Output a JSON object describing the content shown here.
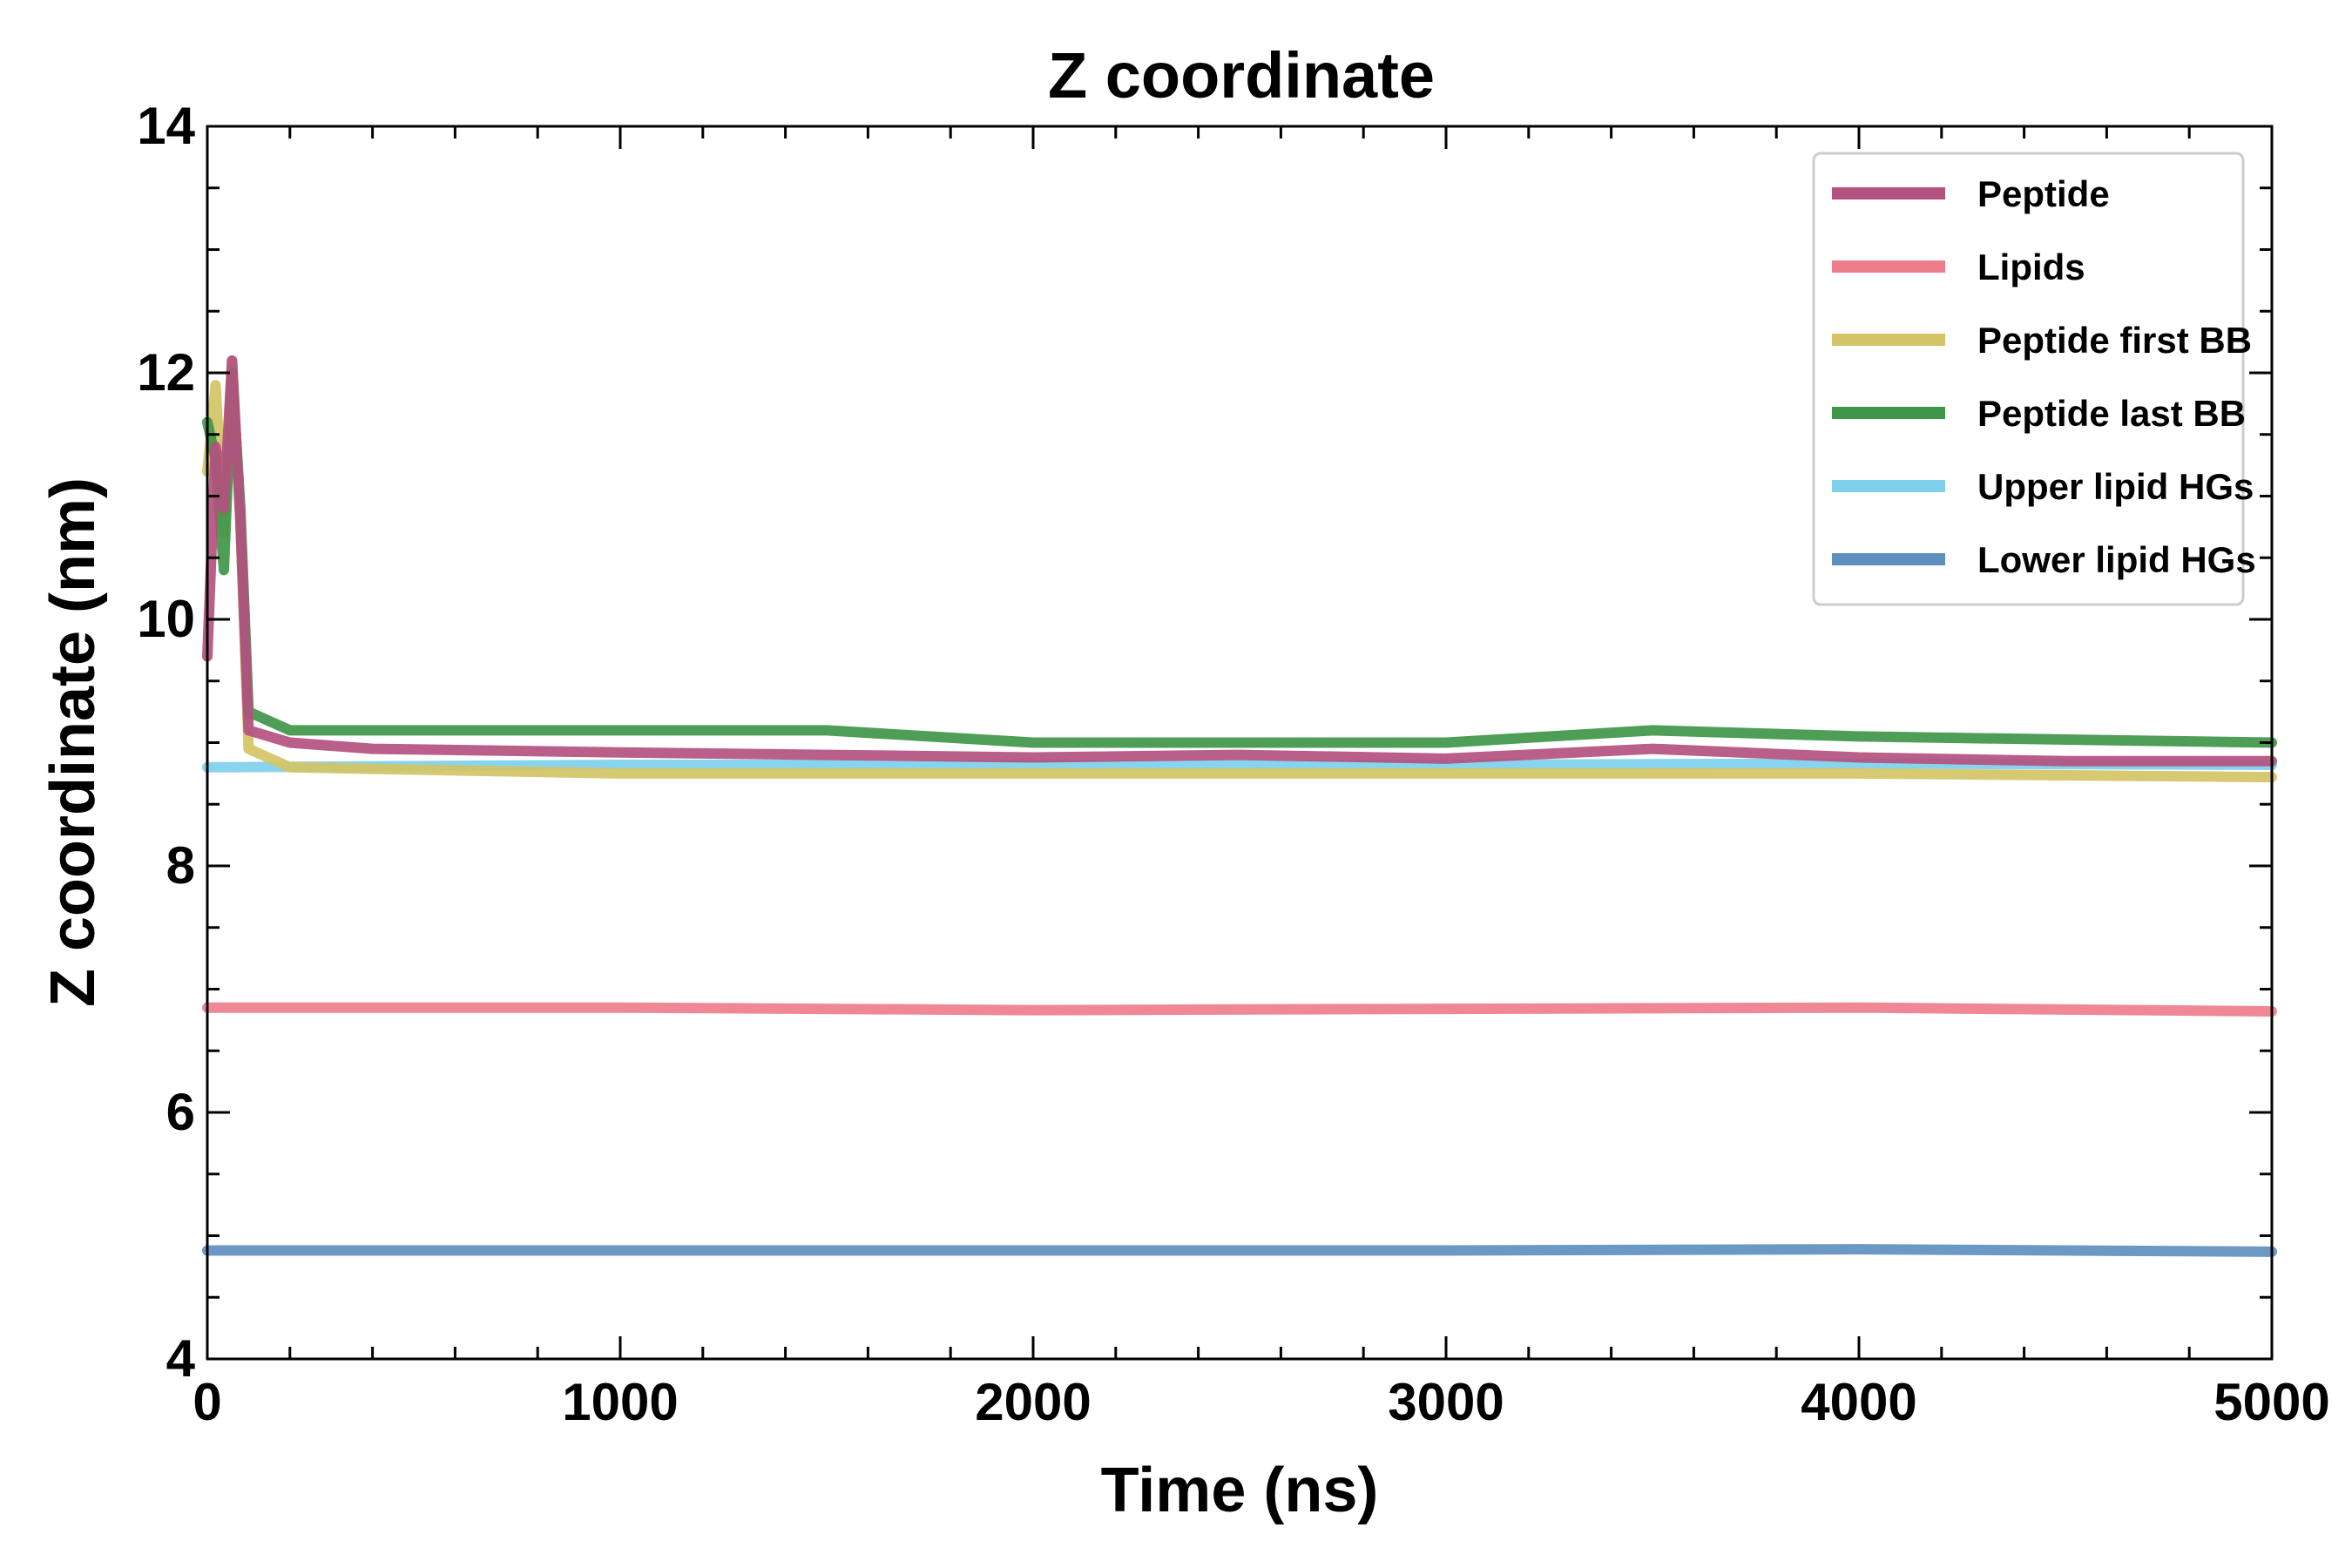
{
  "chart_data": {
    "type": "line",
    "title": "Z coordinate",
    "xlabel": "Time (ns)",
    "ylabel": "Z coordinate (nm)",
    "xlim": [
      0,
      5000
    ],
    "ylim": [
      4,
      14
    ],
    "xticks": [
      0,
      1000,
      2000,
      3000,
      4000,
      5000
    ],
    "yticks": [
      4,
      6,
      8,
      10,
      12,
      14
    ],
    "grid": false,
    "legend_position": "top-right",
    "series": [
      {
        "name": "Peptide",
        "color": "#b3517f",
        "points": [
          [
            0,
            9.7
          ],
          [
            20,
            11.4
          ],
          [
            40,
            10.9
          ],
          [
            60,
            12.1
          ],
          [
            80,
            10.8
          ],
          [
            100,
            9.1
          ],
          [
            200,
            9.0
          ],
          [
            400,
            8.95
          ],
          [
            1000,
            8.92
          ],
          [
            1500,
            8.9
          ],
          [
            2000,
            8.88
          ],
          [
            2500,
            8.9
          ],
          [
            3000,
            8.87
          ],
          [
            3500,
            8.95
          ],
          [
            4000,
            8.88
          ],
          [
            4500,
            8.85
          ],
          [
            5000,
            8.85
          ]
        ]
      },
      {
        "name": "Lipids",
        "color": "#ee7d8b",
        "points": [
          [
            0,
            6.85
          ],
          [
            1000,
            6.85
          ],
          [
            2000,
            6.83
          ],
          [
            3000,
            6.84
          ],
          [
            4000,
            6.85
          ],
          [
            5000,
            6.82
          ]
        ]
      },
      {
        "name": "Peptide first BB",
        "color": "#d3c465",
        "points": [
          [
            0,
            11.2
          ],
          [
            20,
            11.9
          ],
          [
            40,
            10.7
          ],
          [
            60,
            12.1
          ],
          [
            80,
            10.8
          ],
          [
            100,
            8.95
          ],
          [
            200,
            8.8
          ],
          [
            1000,
            8.75
          ],
          [
            2000,
            8.75
          ],
          [
            3000,
            8.75
          ],
          [
            4000,
            8.75
          ],
          [
            5000,
            8.72
          ]
        ]
      },
      {
        "name": "Peptide last BB",
        "color": "#3f9649",
        "points": [
          [
            0,
            11.6
          ],
          [
            20,
            11.3
          ],
          [
            40,
            10.4
          ],
          [
            60,
            12.0
          ],
          [
            80,
            10.9
          ],
          [
            100,
            9.25
          ],
          [
            200,
            9.1
          ],
          [
            1000,
            9.1
          ],
          [
            1500,
            9.1
          ],
          [
            2000,
            9.0
          ],
          [
            3000,
            9.0
          ],
          [
            3500,
            9.1
          ],
          [
            4000,
            9.05
          ],
          [
            5000,
            9.0
          ]
        ]
      },
      {
        "name": "Upper lipid HGs",
        "color": "#7fd0ec",
        "points": [
          [
            0,
            8.8
          ],
          [
            1000,
            8.82
          ],
          [
            2000,
            8.82
          ],
          [
            3000,
            8.82
          ],
          [
            4000,
            8.83
          ],
          [
            5000,
            8.82
          ]
        ]
      },
      {
        "name": "Lower lipid HGs",
        "color": "#5f8fbf",
        "points": [
          [
            0,
            4.88
          ],
          [
            1000,
            4.88
          ],
          [
            2000,
            4.88
          ],
          [
            3000,
            4.88
          ],
          [
            4000,
            4.89
          ],
          [
            5000,
            4.87
          ]
        ]
      }
    ]
  }
}
